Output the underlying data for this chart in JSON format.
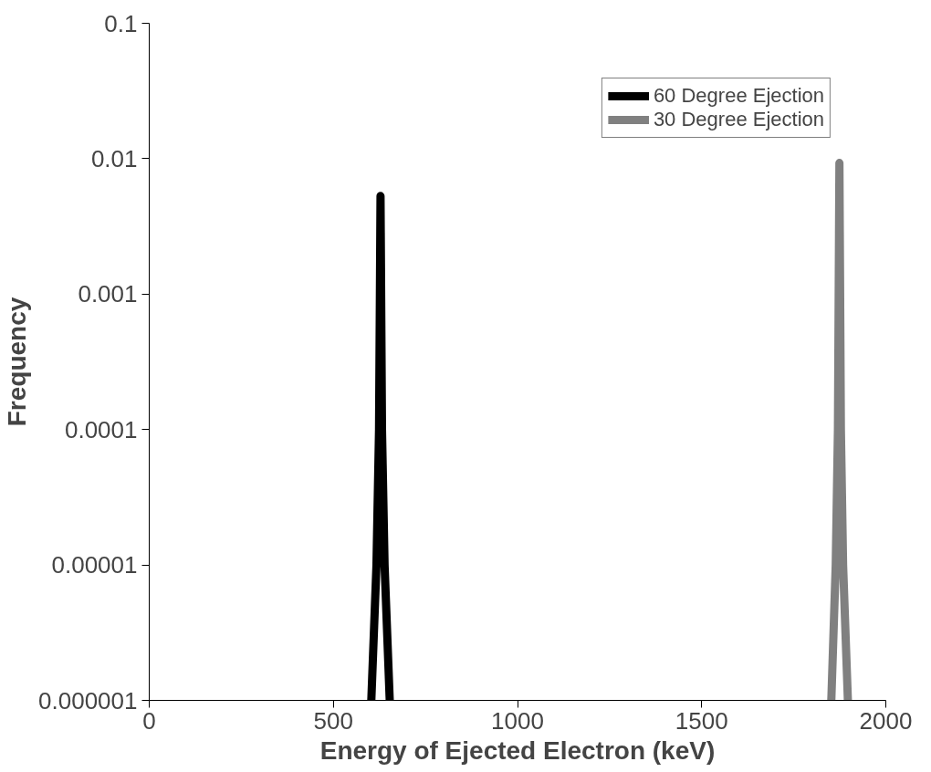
{
  "chart_data": {
    "type": "line",
    "xlabel": "Energy of Ejected Electron (keV)",
    "ylabel": "Frequency",
    "log": "y",
    "xlim": [
      0,
      2000
    ],
    "xticks": [
      0,
      500,
      1000,
      1500,
      2000
    ],
    "ylim": [
      1e-06,
      0.1
    ],
    "yticks": [
      {
        "value": 1e-06,
        "label": "0.000001"
      },
      {
        "value": 1e-05,
        "label": "0.00001"
      },
      {
        "value": 0.0001,
        "label": "0.0001"
      },
      {
        "value": 0.001,
        "label": "0.001"
      },
      {
        "value": 0.01,
        "label": "0.01"
      },
      {
        "value": 0.1,
        "label": "0.1"
      }
    ],
    "grid": false,
    "legend": "top right",
    "line_style": "solid",
    "series": [
      {
        "name": "60 Degree Ejection",
        "color": "#000000",
        "x": [
          603,
          617,
          624,
          628,
          632,
          639,
          653
        ],
        "values": [
          1e-06,
          1e-05,
          0.0001,
          0.0053,
          0.0001,
          1e-05,
          1e-06
        ]
      },
      {
        "name": "30 Degree Ejection",
        "color": "#808080",
        "x": [
          1852,
          1864,
          1870,
          1874,
          1878,
          1884,
          1897
        ],
        "values": [
          1e-06,
          1e-05,
          0.0001,
          0.0093,
          0.0001,
          1e-05,
          1e-06
        ]
      }
    ]
  }
}
